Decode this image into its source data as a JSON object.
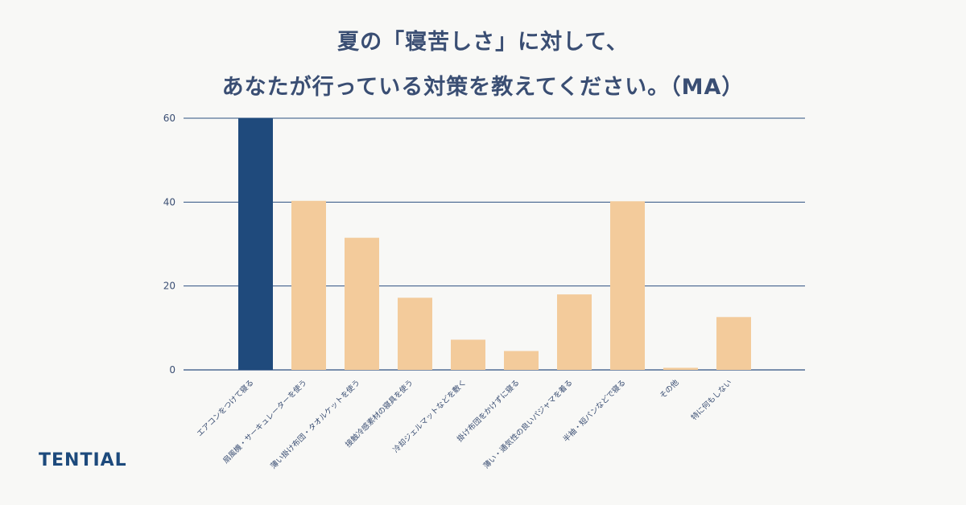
{
  "title": {
    "line1": "夏の「寝苦しさ」に対して、",
    "line2": "あなたが行っている対策を教えてください。（MA）"
  },
  "brand": "TENTIAL",
  "colors": {
    "highlight": "#1f4a7c",
    "bar": "#f3cb9b",
    "grid": "#2d4f80",
    "tick": "#3a4e73"
  },
  "chart_data": {
    "type": "bar",
    "categories": [
      "エアコンをつけて寝る",
      "扇風機・サーキュレーターを使う",
      "薄い掛け布団・タオルケットを使う",
      "接触冷感素材の寝具を使う",
      "冷却ジェルマットなどを敷く",
      "掛け布団をかけずに寝る",
      "薄い・通気性の良いパジャマを着る",
      "半袖・短パンなどで寝る",
      "その他",
      "特に何もしない"
    ],
    "values": [
      60,
      40.3,
      31.5,
      17.2,
      7.2,
      4.5,
      18,
      40.2,
      0.5,
      12.6
    ],
    "highlight_index": 0,
    "ylim": [
      0,
      60
    ],
    "yticks": [
      0,
      20,
      40,
      60
    ],
    "grid": true,
    "xlabel": "",
    "ylabel": ""
  }
}
